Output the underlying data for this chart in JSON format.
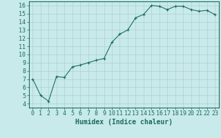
{
  "x": [
    0,
    1,
    2,
    3,
    4,
    5,
    6,
    7,
    8,
    9,
    10,
    11,
    12,
    13,
    14,
    15,
    16,
    17,
    18,
    19,
    20,
    21,
    22,
    23
  ],
  "y": [
    7.0,
    5.0,
    4.3,
    7.3,
    7.2,
    8.5,
    8.7,
    9.0,
    9.3,
    9.5,
    11.5,
    12.5,
    13.0,
    14.5,
    14.9,
    16.0,
    15.9,
    15.5,
    15.9,
    15.9,
    15.5,
    15.3,
    15.4,
    14.9
  ],
  "line_color": "#1a6b5a",
  "bg_color": "#c8eaea",
  "xlabel": "Humidex (Indice chaleur)",
  "xlim": [
    -0.5,
    23.5
  ],
  "ylim": [
    3.5,
    16.5
  ],
  "yticks": [
    4,
    5,
    6,
    7,
    8,
    9,
    10,
    11,
    12,
    13,
    14,
    15,
    16
  ],
  "xticks": [
    0,
    1,
    2,
    3,
    4,
    5,
    6,
    7,
    8,
    9,
    10,
    11,
    12,
    13,
    14,
    15,
    16,
    17,
    18,
    19,
    20,
    21,
    22,
    23
  ],
  "grid_color": "#b0d0d0",
  "tick_color": "#1a6b5a",
  "label_color": "#1a6b5a",
  "xlabel_fontsize": 7.0,
  "tick_fontsize": 6.0,
  "fig_width": 3.2,
  "fig_height": 2.0
}
